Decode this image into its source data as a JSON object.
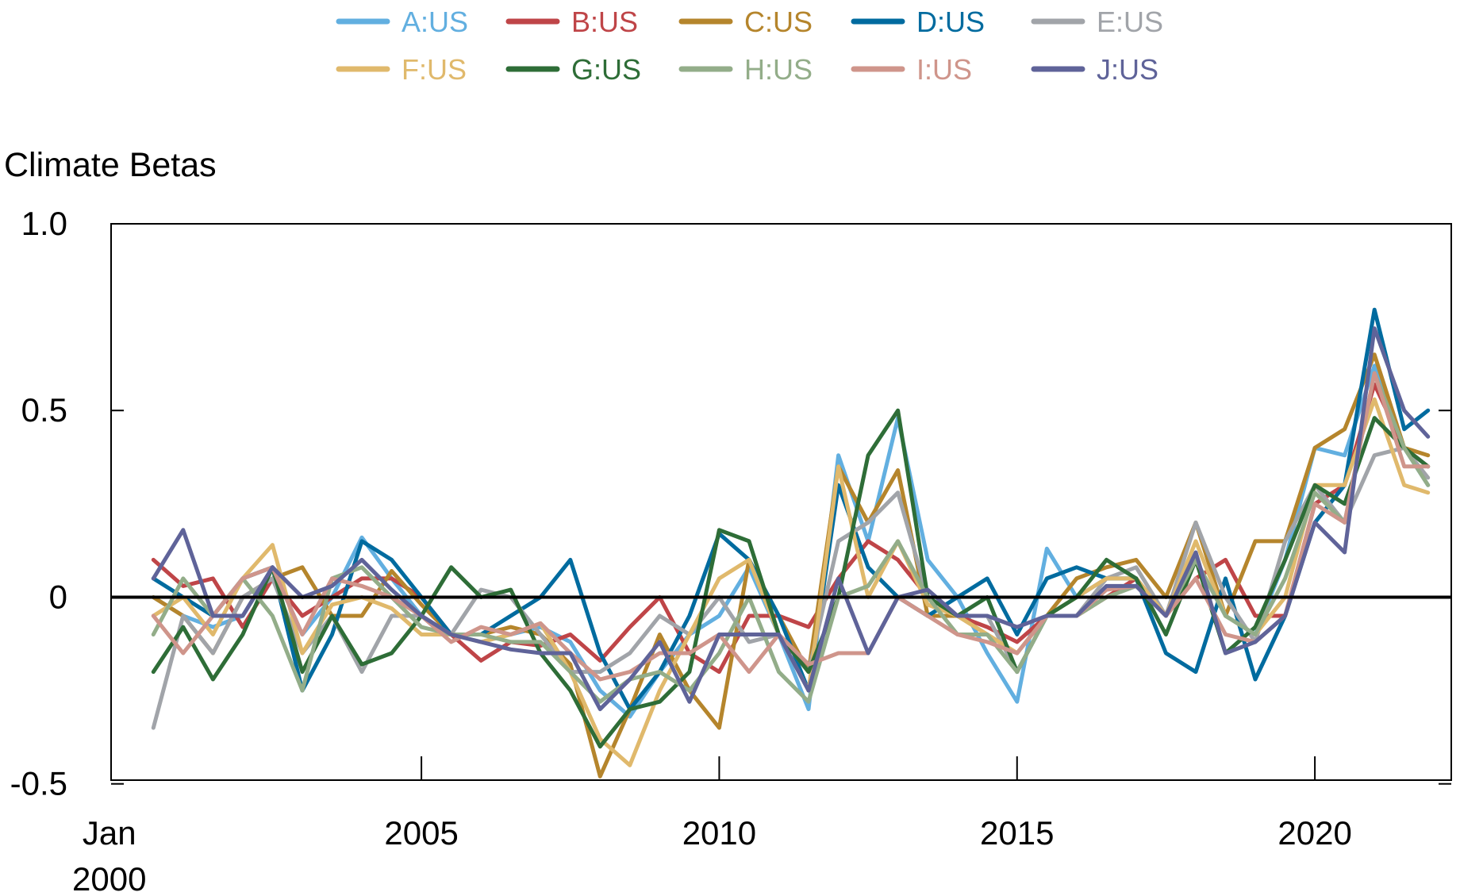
{
  "chart_data": {
    "type": "line",
    "title": "",
    "ylabel": "Climate Betas",
    "xlabel": "",
    "xlim": [
      1999.79,
      2022.29
    ],
    "ylim": [
      -0.49,
      1.0
    ],
    "grid": false,
    "legend_position": "top",
    "y_ticks": [
      {
        "value": 1.0,
        "label": "1.0"
      },
      {
        "value": 0.5,
        "label": "0.5"
      },
      {
        "value": 0,
        "label": "0"
      },
      {
        "value": -0.5,
        "label": "-0.5"
      }
    ],
    "x_ticks": [
      {
        "value": 2000,
        "label": "Jan",
        "label2": "2000"
      },
      {
        "value": 2005,
        "label": "2005"
      },
      {
        "value": 2010,
        "label": "2010"
      },
      {
        "value": 2015,
        "label": "2015"
      },
      {
        "value": 2020,
        "label": "2020"
      }
    ],
    "reference_line": 0,
    "x": [
      2000.5,
      2001,
      2001.5,
      2002,
      2002.5,
      2003,
      2003.5,
      2004,
      2004.5,
      2005,
      2005.5,
      2006,
      2006.5,
      2007,
      2007.5,
      2008,
      2008.5,
      2009,
      2009.5,
      2010,
      2010.5,
      2011,
      2011.5,
      2012,
      2012.5,
      2013,
      2013.5,
      2014,
      2014.5,
      2015,
      2015.5,
      2016,
      2016.5,
      2017,
      2017.5,
      2018,
      2018.5,
      2019,
      2019.5,
      2020,
      2020.5,
      2021,
      2021.5,
      2021.9
    ],
    "series": [
      {
        "name": "A:US",
        "color": "#62afe0",
        "values": [
          0.0,
          -0.05,
          -0.08,
          -0.05,
          0.08,
          -0.1,
          0.0,
          0.16,
          0.05,
          -0.05,
          -0.1,
          -0.12,
          -0.1,
          -0.08,
          -0.12,
          -0.25,
          -0.32,
          -0.2,
          -0.1,
          -0.05,
          0.08,
          -0.1,
          -0.3,
          0.38,
          0.15,
          0.48,
          0.1,
          0.0,
          -0.15,
          -0.28,
          0.13,
          0.0,
          0.05,
          0.05,
          -0.05,
          0.1,
          -0.05,
          -0.1,
          0.1,
          0.4,
          0.38,
          0.62,
          0.4,
          0.3
        ]
      },
      {
        "name": "B:US",
        "color": "#bf4548",
        "values": [
          0.1,
          0.03,
          0.05,
          -0.08,
          0.05,
          -0.05,
          0.0,
          0.05,
          0.05,
          0.0,
          -0.1,
          -0.17,
          -0.12,
          -0.13,
          -0.1,
          -0.17,
          -0.08,
          0.0,
          -0.15,
          -0.2,
          -0.05,
          -0.05,
          -0.08,
          0.05,
          0.15,
          0.1,
          0.0,
          -0.05,
          -0.08,
          -0.12,
          -0.05,
          -0.05,
          0.0,
          0.05,
          -0.05,
          0.05,
          0.1,
          -0.05,
          -0.05,
          0.25,
          0.3,
          0.57,
          0.4,
          0.35
        ]
      },
      {
        "name": "C:US",
        "color": "#b5852c",
        "values": [
          0.0,
          -0.05,
          -0.15,
          0.0,
          0.05,
          0.08,
          -0.05,
          -0.05,
          0.07,
          -0.02,
          -0.1,
          -0.1,
          -0.08,
          -0.1,
          -0.18,
          -0.48,
          -0.3,
          -0.1,
          -0.25,
          -0.35,
          0.1,
          -0.05,
          -0.2,
          0.35,
          0.2,
          0.34,
          -0.05,
          -0.05,
          -0.1,
          -0.15,
          -0.05,
          0.05,
          0.08,
          0.1,
          0.0,
          0.2,
          -0.05,
          0.15,
          0.15,
          0.4,
          0.45,
          0.65,
          0.4,
          0.38
        ]
      },
      {
        "name": "D:US",
        "color": "#006b9f",
        "values": [
          0.05,
          0.0,
          -0.05,
          0.05,
          0.08,
          -0.25,
          -0.1,
          0.15,
          0.1,
          0.0,
          -0.1,
          -0.1,
          -0.05,
          0.0,
          0.1,
          -0.15,
          -0.3,
          -0.2,
          -0.05,
          0.17,
          0.1,
          -0.05,
          -0.25,
          0.3,
          0.08,
          0.0,
          -0.05,
          0.0,
          0.05,
          -0.1,
          0.05,
          0.08,
          0.05,
          0.05,
          -0.15,
          -0.2,
          0.05,
          -0.22,
          -0.05,
          0.2,
          0.3,
          0.77,
          0.45,
          0.5
        ]
      },
      {
        "name": "E:US",
        "color": "#a1a4a9",
        "values": [
          -0.35,
          -0.05,
          -0.15,
          0.0,
          0.05,
          -0.15,
          -0.05,
          -0.2,
          -0.05,
          -0.05,
          -0.1,
          0.02,
          0.0,
          -0.1,
          -0.2,
          -0.2,
          -0.15,
          -0.05,
          -0.1,
          0.0,
          -0.12,
          -0.1,
          -0.2,
          0.15,
          0.2,
          0.28,
          0.0,
          -0.05,
          -0.05,
          -0.2,
          -0.05,
          -0.05,
          0.05,
          0.08,
          -0.05,
          0.2,
          0.0,
          -0.12,
          0.15,
          0.3,
          0.2,
          0.38,
          0.4,
          0.32
        ]
      },
      {
        "name": "F:US",
        "color": "#e0b96c",
        "values": [
          -0.05,
          0.0,
          -0.1,
          0.05,
          0.14,
          -0.15,
          -0.02,
          0.0,
          -0.03,
          -0.1,
          -0.1,
          -0.12,
          -0.1,
          -0.07,
          -0.2,
          -0.38,
          -0.45,
          -0.25,
          -0.1,
          0.05,
          0.1,
          -0.1,
          -0.25,
          0.35,
          0.0,
          0.15,
          -0.02,
          -0.05,
          -0.1,
          -0.15,
          -0.05,
          0.0,
          0.05,
          0.05,
          -0.05,
          0.15,
          -0.05,
          -0.1,
          0.0,
          0.3,
          0.3,
          0.53,
          0.3,
          0.28
        ]
      },
      {
        "name": "G:US",
        "color": "#2e6d37",
        "values": [
          -0.2,
          -0.08,
          -0.22,
          -0.1,
          0.08,
          -0.2,
          -0.05,
          -0.18,
          -0.15,
          -0.05,
          0.08,
          0.0,
          0.02,
          -0.15,
          -0.25,
          -0.4,
          -0.3,
          -0.28,
          -0.2,
          0.18,
          0.15,
          -0.1,
          -0.2,
          0.0,
          0.38,
          0.5,
          0.0,
          -0.05,
          0.0,
          -0.2,
          -0.05,
          0.0,
          0.1,
          0.05,
          -0.1,
          0.1,
          -0.15,
          -0.08,
          0.1,
          0.3,
          0.25,
          0.48,
          0.4,
          0.35
        ]
      },
      {
        "name": "H:US",
        "color": "#93ad89",
        "values": [
          -0.1,
          0.05,
          -0.05,
          0.05,
          -0.05,
          -0.25,
          0.05,
          0.08,
          0.0,
          -0.08,
          -0.1,
          -0.1,
          -0.12,
          -0.12,
          -0.2,
          -0.28,
          -0.22,
          -0.2,
          -0.25,
          -0.15,
          0.0,
          -0.2,
          -0.28,
          0.0,
          0.03,
          0.15,
          0.0,
          -0.1,
          -0.1,
          -0.2,
          -0.05,
          -0.05,
          0.0,
          0.03,
          -0.05,
          0.1,
          -0.05,
          -0.1,
          0.05,
          0.28,
          0.2,
          0.6,
          0.4,
          0.3
        ]
      },
      {
        "name": "I:US",
        "color": "#cf958b",
        "values": [
          -0.05,
          -0.15,
          -0.05,
          0.05,
          0.08,
          -0.1,
          0.05,
          0.03,
          0.0,
          -0.05,
          -0.12,
          -0.08,
          -0.1,
          -0.07,
          -0.15,
          -0.22,
          -0.2,
          -0.15,
          -0.15,
          -0.1,
          -0.2,
          -0.1,
          -0.18,
          -0.15,
          -0.15,
          0.0,
          -0.05,
          -0.1,
          -0.12,
          -0.15,
          -0.05,
          -0.05,
          0.02,
          0.03,
          -0.05,
          0.05,
          -0.1,
          -0.12,
          -0.05,
          0.25,
          0.2,
          0.6,
          0.35,
          0.35
        ]
      },
      {
        "name": "J:US",
        "color": "#5f6399",
        "values": [
          0.05,
          0.18,
          -0.05,
          -0.05,
          0.08,
          0.0,
          0.03,
          0.1,
          0.02,
          -0.05,
          -0.1,
          -0.12,
          -0.14,
          -0.15,
          -0.15,
          -0.3,
          -0.22,
          -0.12,
          -0.28,
          -0.1,
          -0.1,
          -0.1,
          -0.25,
          0.05,
          -0.15,
          0.0,
          0.02,
          -0.05,
          -0.05,
          -0.08,
          -0.05,
          -0.05,
          0.03,
          0.03,
          -0.05,
          0.12,
          -0.15,
          -0.12,
          -0.05,
          0.2,
          0.12,
          0.72,
          0.5,
          0.43
        ]
      }
    ]
  }
}
